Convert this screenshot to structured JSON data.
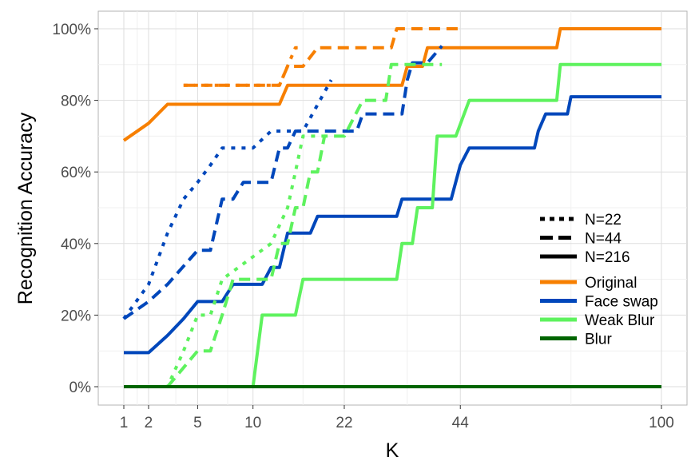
{
  "chart_data": {
    "type": "line",
    "xlabel": "K",
    "ylabel": "Recognition Accuracy",
    "x_scale": "sqrt",
    "xlim": [
      1,
      100
    ],
    "ylim": [
      0,
      100
    ],
    "x_ticks": [
      {
        "value": 1,
        "label": "1"
      },
      {
        "value": 2,
        "label": "2"
      },
      {
        "value": 5,
        "label": "5"
      },
      {
        "value": 10,
        "label": "10"
      },
      {
        "value": 22,
        "label": "22"
      },
      {
        "value": 44,
        "label": "44"
      },
      {
        "value": 100,
        "label": "100"
      }
    ],
    "y_ticks": [
      {
        "value": 0,
        "label": "0%"
      },
      {
        "value": 20,
        "label": "20%"
      },
      {
        "value": 40,
        "label": "40%"
      },
      {
        "value": 60,
        "label": "60%"
      },
      {
        "value": 80,
        "label": "80%"
      },
      {
        "value": 100,
        "label": "100%"
      }
    ],
    "grid": true,
    "legend_position": "right",
    "linetype_legend": [
      {
        "label": "N=22",
        "dash": "dotted"
      },
      {
        "label": "N=44",
        "dash": "dashed"
      },
      {
        "label": "N=216",
        "dash": "solid"
      }
    ],
    "color_legend": [
      {
        "label": "Original",
        "color": "#F77F00"
      },
      {
        "label": "Face swap",
        "color": "#0047BB"
      },
      {
        "label": "Weak Blur",
        "color": "#5EF25E"
      },
      {
        "label": "Blur",
        "color": "#006400"
      }
    ],
    "series": [
      {
        "condition": "Original",
        "n": "N=216",
        "color": "#F77F00",
        "dash": "solid",
        "points": [
          [
            1,
            68.8
          ],
          [
            2,
            73.6
          ],
          [
            3,
            78.9
          ],
          [
            13,
            78.9
          ],
          [
            14,
            84.2
          ],
          [
            32,
            84.2
          ],
          [
            33,
            89.5
          ],
          [
            36,
            89.5
          ],
          [
            37,
            94.7
          ],
          [
            68,
            94.7
          ],
          [
            69,
            100
          ],
          [
            100,
            100
          ]
        ]
      },
      {
        "condition": "Original",
        "n": "N=44",
        "color": "#F77F00",
        "dash": "dashed",
        "points": [
          [
            4,
            84.2
          ],
          [
            13,
            84.2
          ],
          [
            14,
            89.5
          ],
          [
            16,
            89.5
          ],
          [
            18,
            94.7
          ],
          [
            30,
            94.7
          ],
          [
            31,
            100
          ],
          [
            44,
            100
          ]
        ]
      },
      {
        "condition": "Original",
        "n": "N=22",
        "color": "#F77F00",
        "dash": "dotted",
        "points": [
          [
            4,
            84.2
          ],
          [
            13,
            84.2
          ],
          [
            15,
            94.7
          ],
          [
            16,
            94.7
          ]
        ]
      },
      {
        "condition": "Face swap",
        "n": "N=216",
        "color": "#0047BB",
        "dash": "solid",
        "points": [
          [
            1,
            9.5
          ],
          [
            2,
            9.5
          ],
          [
            3,
            14.3
          ],
          [
            4,
            19
          ],
          [
            5,
            23.8
          ],
          [
            7,
            23.8
          ],
          [
            8,
            28.6
          ],
          [
            11,
            28.6
          ],
          [
            12,
            33.3
          ],
          [
            13,
            33.3
          ],
          [
            14,
            42.9
          ],
          [
            17,
            42.9
          ],
          [
            18,
            47.6
          ],
          [
            31,
            47.6
          ],
          [
            32,
            52.4
          ],
          [
            42,
            52.4
          ],
          [
            44,
            61.9
          ],
          [
            46,
            66.7
          ],
          [
            62,
            66.7
          ],
          [
            63,
            71.4
          ],
          [
            65,
            76.2
          ],
          [
            71,
            76.2
          ],
          [
            72,
            81
          ],
          [
            100,
            81
          ]
        ]
      },
      {
        "condition": "Face swap",
        "n": "N=44",
        "color": "#0047BB",
        "dash": "dashed",
        "points": [
          [
            1,
            19
          ],
          [
            2,
            23.8
          ],
          [
            3,
            28.6
          ],
          [
            5,
            38.1
          ],
          [
            6,
            38.1
          ],
          [
            7,
            52.4
          ],
          [
            8,
            52.4
          ],
          [
            9,
            57.1
          ],
          [
            12,
            57.1
          ],
          [
            13,
            66.7
          ],
          [
            14,
            66.7
          ],
          [
            15,
            71.4
          ],
          [
            24,
            71.4
          ],
          [
            25,
            76.2
          ],
          [
            32,
            76.2
          ],
          [
            33,
            85.7
          ],
          [
            34,
            90.5
          ],
          [
            37,
            90.5
          ],
          [
            40,
            95.2
          ]
        ]
      },
      {
        "condition": "Face swap",
        "n": "N=22",
        "color": "#0047BB",
        "dash": "dotted",
        "points": [
          [
            1,
            19
          ],
          [
            2,
            28.6
          ],
          [
            3,
            42.9
          ],
          [
            4,
            52.4
          ],
          [
            5,
            57.1
          ],
          [
            6,
            61.9
          ],
          [
            7,
            66.7
          ],
          [
            10,
            66.7
          ],
          [
            12,
            71.4
          ],
          [
            16,
            71.4
          ],
          [
            20,
            85.7
          ]
        ]
      },
      {
        "condition": "Weak Blur",
        "n": "N=216",
        "color": "#5EF25E",
        "dash": "solid",
        "points": [
          [
            10,
            0
          ],
          [
            11,
            20
          ],
          [
            15,
            20
          ],
          [
            16,
            30
          ],
          [
            31,
            30
          ],
          [
            32,
            40
          ],
          [
            34,
            40
          ],
          [
            35,
            50
          ],
          [
            38,
            50
          ],
          [
            39,
            70
          ],
          [
            43,
            70
          ],
          [
            46,
            80
          ],
          [
            68,
            80
          ],
          [
            69,
            90
          ],
          [
            100,
            90
          ]
        ]
      },
      {
        "condition": "Weak Blur",
        "n": "N=44",
        "color": "#5EF25E",
        "dash": "dashed",
        "points": [
          [
            3,
            0
          ],
          [
            5,
            10
          ],
          [
            6,
            10
          ],
          [
            7,
            20
          ],
          [
            8,
            30
          ],
          [
            12,
            30
          ],
          [
            13,
            40
          ],
          [
            14,
            40
          ],
          [
            15,
            50
          ],
          [
            16,
            50
          ],
          [
            17,
            60
          ],
          [
            18,
            60
          ],
          [
            19,
            70
          ],
          [
            22,
            70
          ],
          [
            25,
            80
          ],
          [
            29,
            80
          ],
          [
            30,
            90
          ],
          [
            36,
            90
          ],
          [
            40,
            90
          ]
        ]
      },
      {
        "condition": "Weak Blur",
        "n": "N=22",
        "color": "#5EF25E",
        "dash": "dotted",
        "points": [
          [
            1,
            0
          ],
          [
            2,
            0
          ],
          [
            3,
            0
          ],
          [
            4,
            10
          ],
          [
            5,
            20
          ],
          [
            6,
            20
          ],
          [
            7,
            30
          ],
          [
            12,
            40
          ],
          [
            14,
            50
          ],
          [
            15,
            60
          ],
          [
            16,
            70
          ],
          [
            20,
            70
          ]
        ]
      },
      {
        "condition": "Blur",
        "n": "N=216",
        "color": "#006400",
        "dash": "solid",
        "points": [
          [
            1,
            0
          ],
          [
            100,
            0
          ]
        ]
      }
    ]
  }
}
